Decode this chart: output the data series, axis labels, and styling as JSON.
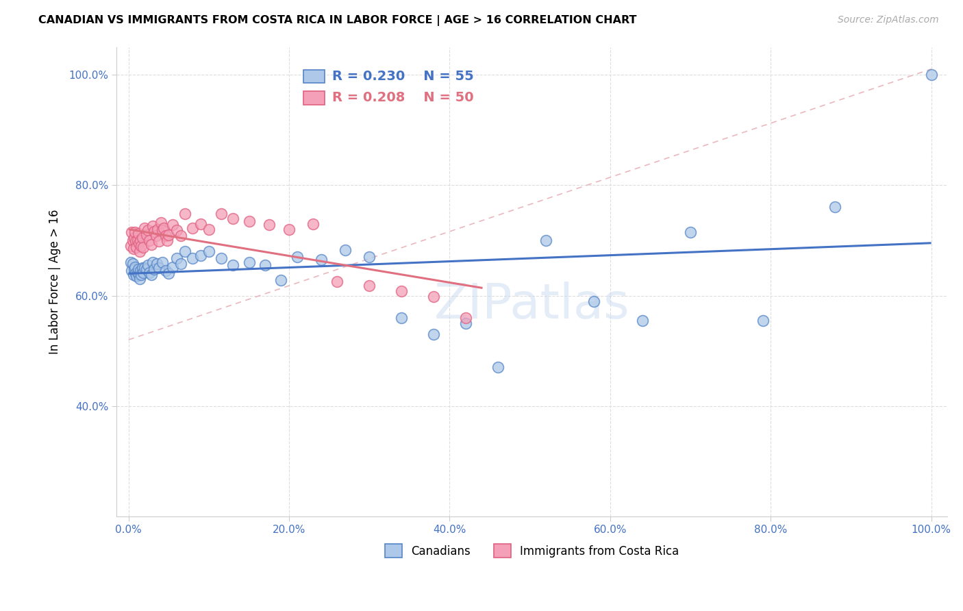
{
  "title": "CANADIAN VS IMMIGRANTS FROM COSTA RICA IN LABOR FORCE | AGE > 16 CORRELATION CHART",
  "source": "Source: ZipAtlas.com",
  "ylabel": "In Labor Force | Age > 16",
  "legend_r_canadians": "R = 0.230",
  "legend_n_canadians": "N = 55",
  "legend_r_costarica": "R = 0.208",
  "legend_n_costarica": "N = 50",
  "canadians_color": "#adc8e8",
  "costarica_color": "#f4a0b8",
  "canadians_edge_color": "#5585c8",
  "costarica_edge_color": "#e06080",
  "canadians_line_color": "#4472C4",
  "costarica_line_color": "#e07080",
  "dash_line_color": "#e8b0b8",
  "watermark": "ZIPatlas",
  "canadians_x": [
    0.003,
    0.004,
    0.005,
    0.006,
    0.007,
    0.008,
    0.009,
    0.01,
    0.011,
    0.012,
    0.013,
    0.014,
    0.015,
    0.016,
    0.017,
    0.018,
    0.02,
    0.022,
    0.024,
    0.026,
    0.028,
    0.03,
    0.032,
    0.035,
    0.038,
    0.042,
    0.046,
    0.05,
    0.055,
    0.06,
    0.065,
    0.07,
    0.08,
    0.09,
    0.1,
    0.115,
    0.13,
    0.15,
    0.17,
    0.19,
    0.21,
    0.24,
    0.27,
    0.3,
    0.34,
    0.38,
    0.42,
    0.46,
    0.52,
    0.58,
    0.64,
    0.7,
    0.79,
    0.88,
    1.0
  ],
  "canadians_y": [
    0.66,
    0.645,
    0.658,
    0.638,
    0.648,
    0.652,
    0.64,
    0.635,
    0.642,
    0.648,
    0.638,
    0.63,
    0.645,
    0.638,
    0.65,
    0.642,
    0.65,
    0.648,
    0.655,
    0.642,
    0.638,
    0.66,
    0.648,
    0.658,
    0.65,
    0.66,
    0.645,
    0.64,
    0.652,
    0.668,
    0.658,
    0.68,
    0.668,
    0.672,
    0.68,
    0.668,
    0.655,
    0.66,
    0.655,
    0.628,
    0.67,
    0.665,
    0.682,
    0.67,
    0.56,
    0.53,
    0.55,
    0.47,
    0.7,
    0.59,
    0.555,
    0.715,
    0.555,
    0.76,
    1.0
  ],
  "costarica_x": [
    0.003,
    0.004,
    0.005,
    0.006,
    0.007,
    0.008,
    0.009,
    0.01,
    0.011,
    0.012,
    0.013,
    0.014,
    0.015,
    0.016,
    0.017,
    0.018,
    0.02,
    0.022,
    0.024,
    0.026,
    0.028,
    0.03,
    0.032,
    0.034,
    0.036,
    0.038,
    0.04,
    0.042,
    0.044,
    0.046,
    0.048,
    0.05,
    0.055,
    0.06,
    0.065,
    0.07,
    0.08,
    0.09,
    0.1,
    0.115,
    0.13,
    0.15,
    0.175,
    0.2,
    0.23,
    0.26,
    0.3,
    0.34,
    0.38,
    0.42
  ],
  "costarica_y": [
    0.69,
    0.715,
    0.7,
    0.685,
    0.705,
    0.715,
    0.698,
    0.688,
    0.7,
    0.712,
    0.695,
    0.68,
    0.7,
    0.69,
    0.705,
    0.688,
    0.722,
    0.71,
    0.718,
    0.7,
    0.692,
    0.726,
    0.716,
    0.708,
    0.72,
    0.698,
    0.732,
    0.718,
    0.722,
    0.708,
    0.7,
    0.71,
    0.728,
    0.718,
    0.708,
    0.748,
    0.722,
    0.73,
    0.72,
    0.748,
    0.74,
    0.735,
    0.728,
    0.72,
    0.73,
    0.625,
    0.618,
    0.608,
    0.598,
    0.56
  ],
  "xlim": [
    0.0,
    1.0
  ],
  "ylim_min": 0.2,
  "ylim_max": 1.05,
  "yticks": [
    0.4,
    0.6,
    0.8,
    1.0
  ],
  "ytick_labels": [
    "40.0%",
    "60.0%",
    "80.0%",
    "100.0%"
  ],
  "xticks": [
    0.0,
    0.2,
    0.4,
    0.6,
    0.8,
    1.0
  ],
  "xtick_labels": [
    "0.0%",
    "20.0%",
    "40.0%",
    "60.0%",
    "80.0%",
    "100.0%"
  ],
  "tick_color": "#4472C4"
}
